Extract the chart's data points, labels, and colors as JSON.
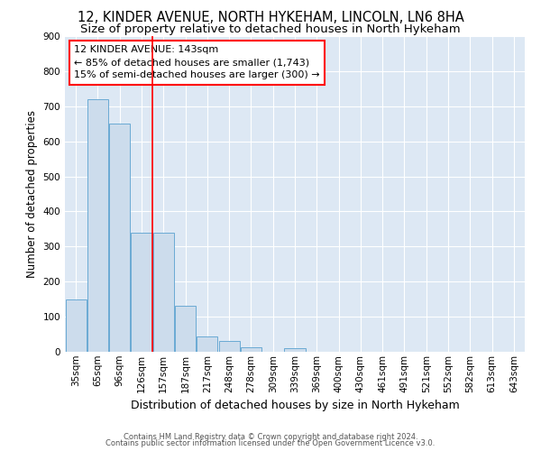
{
  "title": "12, KINDER AVENUE, NORTH HYKEHAM, LINCOLN, LN6 8HA",
  "subtitle": "Size of property relative to detached houses in North Hykeham",
  "xlabel": "Distribution of detached houses by size in North Hykeham",
  "ylabel": "Number of detached properties",
  "categories": [
    "35sqm",
    "65sqm",
    "96sqm",
    "126sqm",
    "157sqm",
    "187sqm",
    "217sqm",
    "248sqm",
    "278sqm",
    "309sqm",
    "339sqm",
    "369sqm",
    "400sqm",
    "430sqm",
    "461sqm",
    "491sqm",
    "521sqm",
    "552sqm",
    "582sqm",
    "613sqm",
    "643sqm"
  ],
  "values": [
    150,
    720,
    650,
    340,
    340,
    130,
    43,
    32,
    13,
    0,
    10,
    0,
    0,
    0,
    0,
    0,
    0,
    0,
    0,
    0,
    0
  ],
  "bar_color": "#ccdcec",
  "bar_edge_color": "#6aaad4",
  "red_line_x": 3.5,
  "annotation_line1": "12 KINDER AVENUE: 143sqm",
  "annotation_line2": "← 85% of detached houses are smaller (1,743)",
  "annotation_line3": "15% of semi-detached houses are larger (300) →",
  "annotation_box_color": "white",
  "annotation_box_edge": "red",
  "footer_line1": "Contains HM Land Registry data © Crown copyright and database right 2024.",
  "footer_line2": "Contains public sector information licensed under the Open Government Licence v3.0.",
  "ylim": [
    0,
    900
  ],
  "background_color": "#dde8f4",
  "grid_color": "white",
  "title_fontsize": 10.5,
  "subtitle_fontsize": 9.5,
  "ylabel_fontsize": 8.5,
  "xlabel_fontsize": 9,
  "tick_fontsize": 7.5,
  "annot_fontsize": 8,
  "footer_fontsize": 6
}
